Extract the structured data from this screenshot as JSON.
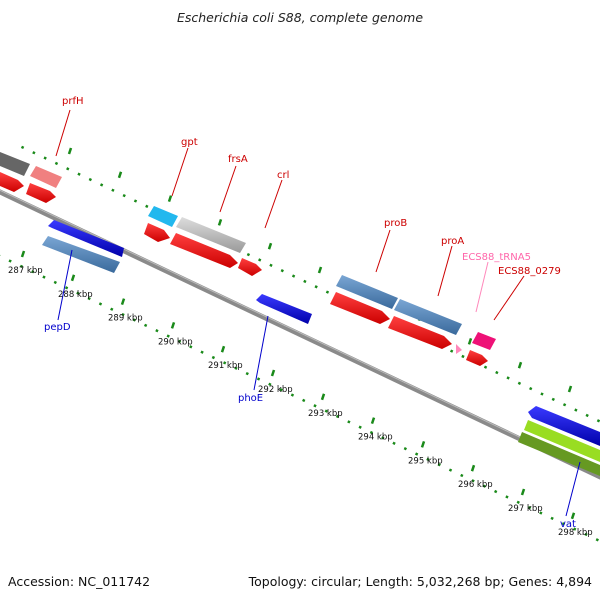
{
  "title": "Escherichia coli S88, complete genome",
  "footer": {
    "accession": "Accession: NC_011742",
    "topology": "Topology: circular; Length: 5,032,268 bp; Genes: 4,894"
  },
  "colors": {
    "backbone": "#888888",
    "tick": "#1a8a1a",
    "label_red": "#cc0000",
    "label_blue": "#0000cc",
    "label_pink": "#ff66aa"
  },
  "scale_labels": [
    "287 kbp",
    "288 kbp",
    "289 kbp",
    "290 kbp",
    "291 kbp",
    "292 kbp",
    "293 kbp",
    "294 kbp",
    "295 kbp",
    "296 kbp",
    "297 kbp",
    "298 kbp"
  ],
  "gene_labels": {
    "prfH": "prfH",
    "gpt": "gpt",
    "frsA": "frsA",
    "crl": "crl",
    "proB": "proB",
    "proA": "proA",
    "trna": "ECS88_tRNA5",
    "ecs0279": "ECS88_0279",
    "pepD": "pepD",
    "phoE": "phoE",
    "vat": "vat"
  }
}
